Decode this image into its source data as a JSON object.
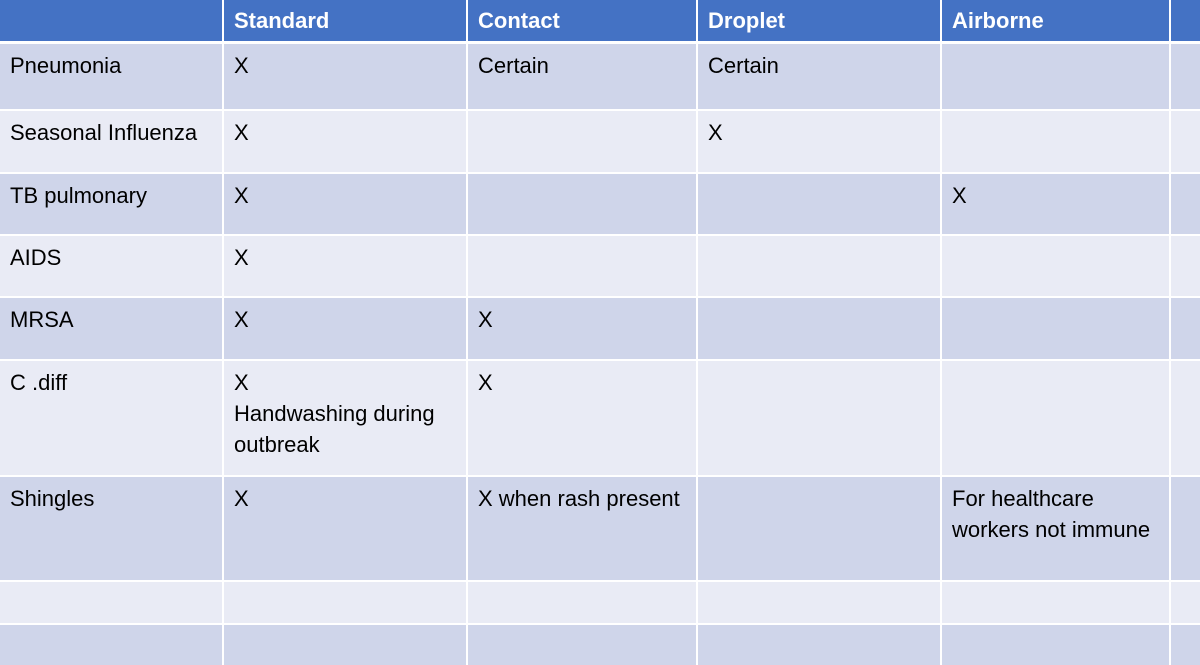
{
  "table": {
    "headers": [
      "",
      "Standard",
      "Contact",
      "Droplet",
      "Airborne",
      ""
    ],
    "rows": [
      [
        "Pneumonia",
        "X",
        "Certain",
        "Certain",
        "",
        ""
      ],
      [
        "Seasonal Influenza",
        "X",
        "",
        "X",
        "",
        ""
      ],
      [
        "TB pulmonary",
        "X",
        "",
        "",
        "X",
        ""
      ],
      [
        "AIDS",
        "X",
        "",
        "",
        "",
        ""
      ],
      [
        "MRSA",
        "X",
        "X",
        "",
        "",
        ""
      ],
      [
        "C .diff",
        "X\nHandwashing during outbreak",
        "X",
        "",
        "",
        ""
      ],
      [
        "Shingles",
        "X",
        "X when rash present",
        "",
        "For healthcare workers not immune",
        ""
      ],
      [
        "",
        "",
        "",
        "",
        "",
        ""
      ],
      [
        "",
        "",
        "",
        "",
        "",
        ""
      ]
    ]
  },
  "colors": {
    "header": "#4472C4",
    "row_dark": "#CFD5EA",
    "row_light": "#E9EBF5"
  }
}
